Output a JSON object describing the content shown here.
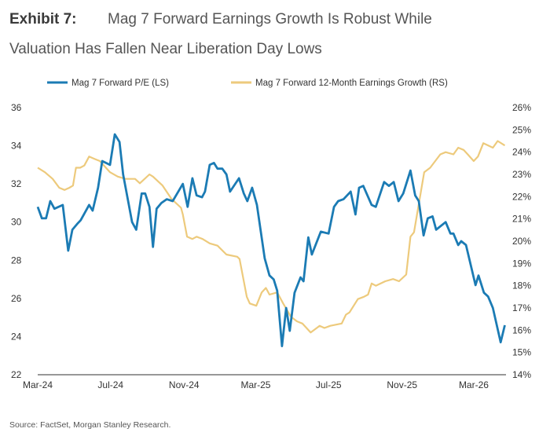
{
  "chart_data": {
    "type": "line",
    "title_prefix": "Exhibit 7:",
    "title_line1": "Mag 7 Forward Earnings Growth Is Robust While",
    "title_line2": "Valuation Has Fallen Near Liberation Day Lows",
    "source": "Source: FactSet, Morgan Stanley Research.",
    "xlim": [
      "2024-03-01",
      "2026-04-24"
    ],
    "x_ticks": [
      {
        "date": "2024-03-01",
        "label": "Mar-24"
      },
      {
        "date": "2024-07-01",
        "label": "Jul-24"
      },
      {
        "date": "2024-11-01",
        "label": "Nov-24"
      },
      {
        "date": "2025-03-01",
        "label": "Mar-25"
      },
      {
        "date": "2025-07-01",
        "label": "Jul-25"
      },
      {
        "date": "2025-11-01",
        "label": "Nov-25"
      },
      {
        "date": "2026-03-01",
        "label": "Mar-26"
      }
    ],
    "y_left": {
      "lim": [
        22,
        36
      ],
      "ticks": [
        "22",
        "24",
        "26",
        "28",
        "30",
        "32",
        "34",
        "36"
      ]
    },
    "y_right": {
      "lim": [
        14,
        26
      ],
      "ticks": [
        "14%",
        "15%",
        "16%",
        "17%",
        "18%",
        "19%",
        "20%",
        "21%",
        "22%",
        "23%",
        "24%",
        "25%",
        "26%"
      ]
    },
    "grid": false,
    "legend_position": "top",
    "series": [
      {
        "name": "Mag 7 Forward P/E (LS)",
        "axis": "left",
        "color": "#1b7bb4",
        "points": [
          [
            "2024-03-01",
            30.8
          ],
          [
            "2024-03-08",
            30.2
          ],
          [
            "2024-03-15",
            30.2
          ],
          [
            "2024-03-22",
            31.1
          ],
          [
            "2024-03-29",
            30.7
          ],
          [
            "2024-04-12",
            30.9
          ],
          [
            "2024-04-21",
            28.5
          ],
          [
            "2024-04-28",
            29.6
          ],
          [
            "2024-05-06",
            29.9
          ],
          [
            "2024-05-12",
            30.1
          ],
          [
            "2024-05-26",
            30.9
          ],
          [
            "2024-06-01",
            30.6
          ],
          [
            "2024-06-10",
            31.8
          ],
          [
            "2024-06-17",
            33.2
          ],
          [
            "2024-06-30",
            33.0
          ],
          [
            "2024-07-08",
            34.6
          ],
          [
            "2024-07-16",
            34.2
          ],
          [
            "2024-07-22",
            32.5
          ],
          [
            "2024-08-06",
            30.0
          ],
          [
            "2024-08-13",
            29.6
          ],
          [
            "2024-08-22",
            31.5
          ],
          [
            "2024-08-28",
            31.5
          ],
          [
            "2024-09-04",
            30.8
          ],
          [
            "2024-09-10",
            28.7
          ],
          [
            "2024-09-16",
            30.7
          ],
          [
            "2024-09-24",
            31.0
          ],
          [
            "2024-10-03",
            31.2
          ],
          [
            "2024-10-13",
            31.1
          ],
          [
            "2024-10-30",
            32.0
          ],
          [
            "2024-11-07",
            30.8
          ],
          [
            "2024-11-15",
            32.3
          ],
          [
            "2024-11-22",
            31.4
          ],
          [
            "2024-12-01",
            31.3
          ],
          [
            "2024-12-06",
            31.6
          ],
          [
            "2024-12-14",
            33.0
          ],
          [
            "2024-12-21",
            33.1
          ],
          [
            "2024-12-27",
            32.8
          ],
          [
            "2025-01-04",
            32.8
          ],
          [
            "2025-01-11",
            32.5
          ],
          [
            "2025-01-17",
            31.6
          ],
          [
            "2025-02-01",
            32.3
          ],
          [
            "2025-02-09",
            31.5
          ],
          [
            "2025-02-15",
            31.1
          ],
          [
            "2025-02-23",
            31.8
          ],
          [
            "2025-03-03",
            30.9
          ],
          [
            "2025-03-16",
            28.1
          ],
          [
            "2025-03-24",
            27.2
          ],
          [
            "2025-03-31",
            27.0
          ],
          [
            "2025-04-06",
            26.4
          ],
          [
            "2025-04-14",
            23.5
          ],
          [
            "2025-04-21",
            25.5
          ],
          [
            "2025-04-27",
            24.3
          ],
          [
            "2025-05-05",
            26.3
          ],
          [
            "2025-05-15",
            27.1
          ],
          [
            "2025-05-20",
            26.9
          ],
          [
            "2025-05-28",
            29.2
          ],
          [
            "2025-06-03",
            28.3
          ],
          [
            "2025-06-18",
            29.5
          ],
          [
            "2025-07-01",
            29.4
          ],
          [
            "2025-07-10",
            30.8
          ],
          [
            "2025-07-17",
            31.1
          ],
          [
            "2025-07-26",
            31.2
          ],
          [
            "2025-08-07",
            31.6
          ],
          [
            "2025-08-15",
            30.4
          ],
          [
            "2025-08-21",
            31.8
          ],
          [
            "2025-08-28",
            31.9
          ],
          [
            "2025-09-11",
            30.9
          ],
          [
            "2025-09-18",
            30.8
          ],
          [
            "2025-10-02",
            32.1
          ],
          [
            "2025-10-10",
            31.9
          ],
          [
            "2025-10-18",
            32.1
          ],
          [
            "2025-10-26",
            31.1
          ],
          [
            "2025-11-03",
            31.5
          ],
          [
            "2025-11-15",
            32.7
          ],
          [
            "2025-11-23",
            31.4
          ],
          [
            "2025-11-29",
            31.1
          ],
          [
            "2025-12-07",
            29.3
          ],
          [
            "2025-12-14",
            30.2
          ],
          [
            "2025-12-22",
            30.3
          ],
          [
            "2025-12-28",
            29.6
          ],
          [
            "2026-01-13",
            30.0
          ],
          [
            "2026-01-21",
            29.4
          ],
          [
            "2026-01-26",
            29.4
          ],
          [
            "2026-02-03",
            28.8
          ],
          [
            "2026-02-08",
            29.0
          ],
          [
            "2026-02-16",
            28.8
          ],
          [
            "2026-03-04",
            26.7
          ],
          [
            "2026-03-09",
            27.2
          ],
          [
            "2026-03-18",
            26.3
          ],
          [
            "2026-03-25",
            26.1
          ],
          [
            "2026-04-02",
            25.5
          ],
          [
            "2026-04-15",
            23.7
          ],
          [
            "2026-04-22",
            24.6
          ]
        ]
      },
      {
        "name": "Mag 7 Forward 12-Month Earnings Growth (RS)",
        "axis": "right",
        "color": "#edca7c",
        "points": [
          [
            "2024-03-01",
            23.3
          ],
          [
            "2024-03-13",
            23.1
          ],
          [
            "2024-03-26",
            22.8
          ],
          [
            "2024-04-06",
            22.4
          ],
          [
            "2024-04-15",
            22.3
          ],
          [
            "2024-04-23",
            22.4
          ],
          [
            "2024-04-29",
            22.5
          ],
          [
            "2024-05-04",
            23.3
          ],
          [
            "2024-05-11",
            23.3
          ],
          [
            "2024-05-18",
            23.4
          ],
          [
            "2024-05-26",
            23.8
          ],
          [
            "2024-06-04",
            23.7
          ],
          [
            "2024-06-13",
            23.6
          ],
          [
            "2024-06-30",
            23.1
          ],
          [
            "2024-07-13",
            22.9
          ],
          [
            "2024-07-26",
            22.8
          ],
          [
            "2024-08-11",
            22.8
          ],
          [
            "2024-08-19",
            22.6
          ],
          [
            "2024-09-04",
            23.0
          ],
          [
            "2024-09-10",
            22.9
          ],
          [
            "2024-09-26",
            22.5
          ],
          [
            "2024-10-11",
            21.9
          ],
          [
            "2024-10-27",
            21.5
          ],
          [
            "2024-10-30",
            21.2
          ],
          [
            "2024-11-06",
            20.2
          ],
          [
            "2024-11-15",
            20.1
          ],
          [
            "2024-11-22",
            20.2
          ],
          [
            "2024-12-02",
            20.1
          ],
          [
            "2024-12-14",
            19.9
          ],
          [
            "2024-12-27",
            19.8
          ],
          [
            "2025-01-11",
            19.4
          ],
          [
            "2025-01-29",
            19.3
          ],
          [
            "2025-02-02",
            19.2
          ],
          [
            "2025-02-14",
            17.5
          ],
          [
            "2025-02-19",
            17.2
          ],
          [
            "2025-03-02",
            17.1
          ],
          [
            "2025-03-11",
            17.7
          ],
          [
            "2025-03-18",
            17.9
          ],
          [
            "2025-03-24",
            17.6
          ],
          [
            "2025-04-06",
            17.7
          ],
          [
            "2025-04-16",
            17.2
          ],
          [
            "2025-04-29",
            16.6
          ],
          [
            "2025-05-09",
            16.4
          ],
          [
            "2025-05-18",
            16.3
          ],
          [
            "2025-06-01",
            15.9
          ],
          [
            "2025-06-16",
            16.2
          ],
          [
            "2025-06-24",
            16.1
          ],
          [
            "2025-07-04",
            16.2
          ],
          [
            "2025-07-23",
            16.3
          ],
          [
            "2025-07-30",
            16.7
          ],
          [
            "2025-08-05",
            16.8
          ],
          [
            "2025-08-19",
            17.4
          ],
          [
            "2025-08-29",
            17.5
          ],
          [
            "2025-09-05",
            17.6
          ],
          [
            "2025-09-11",
            18.1
          ],
          [
            "2025-09-18",
            18.0
          ],
          [
            "2025-10-04",
            18.2
          ],
          [
            "2025-10-17",
            18.3
          ],
          [
            "2025-10-27",
            18.2
          ],
          [
            "2025-11-08",
            18.5
          ],
          [
            "2025-11-15",
            20.2
          ],
          [
            "2025-11-21",
            20.4
          ],
          [
            "2025-12-08",
            23.1
          ],
          [
            "2025-12-18",
            23.3
          ],
          [
            "2026-01-04",
            23.9
          ],
          [
            "2026-01-13",
            24.0
          ],
          [
            "2026-01-26",
            23.9
          ],
          [
            "2026-02-03",
            24.2
          ],
          [
            "2026-02-12",
            24.1
          ],
          [
            "2026-02-19",
            23.9
          ],
          [
            "2026-03-01",
            23.6
          ],
          [
            "2026-03-08",
            23.8
          ],
          [
            "2026-03-17",
            24.4
          ],
          [
            "2026-04-02",
            24.2
          ],
          [
            "2026-04-10",
            24.5
          ],
          [
            "2026-04-22",
            24.3
          ]
        ]
      }
    ]
  }
}
